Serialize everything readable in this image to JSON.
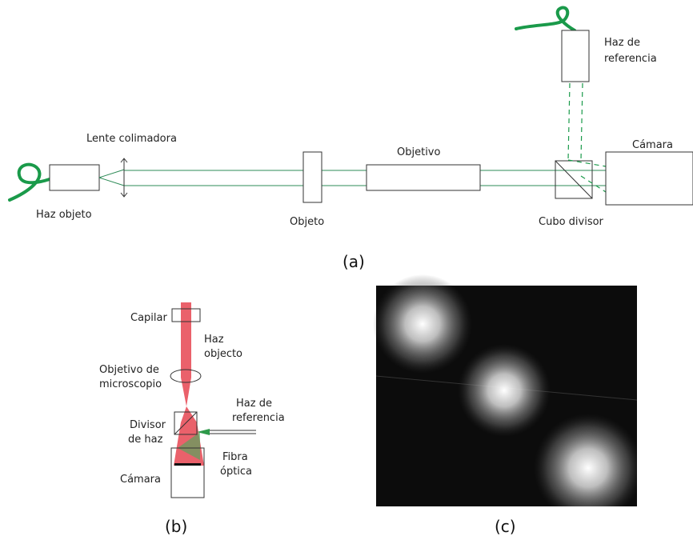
{
  "panel_a": {
    "caption": "(a)",
    "labels": {
      "source": "Haz objeto",
      "lens": "Lente colimadora",
      "object": "Objeto",
      "objective": "Objetivo",
      "cube": "Cubo divisor",
      "camera": "Cámara",
      "reference": [
        "Haz de",
        "referencia"
      ]
    }
  },
  "panel_b": {
    "caption": "(b)",
    "labels": {
      "capillary": "Capilar",
      "object_beam": [
        "Haz",
        "objecto"
      ],
      "objective": [
        "Objetivo de",
        "microscopio"
      ],
      "reference": [
        "Haz de",
        "referencia"
      ],
      "splitter": [
        "Divisor",
        "de haz"
      ],
      "fiber": [
        "Fibra",
        "óptica"
      ],
      "camera": "Cámara"
    }
  },
  "panel_c": {
    "caption": "(c)"
  }
}
